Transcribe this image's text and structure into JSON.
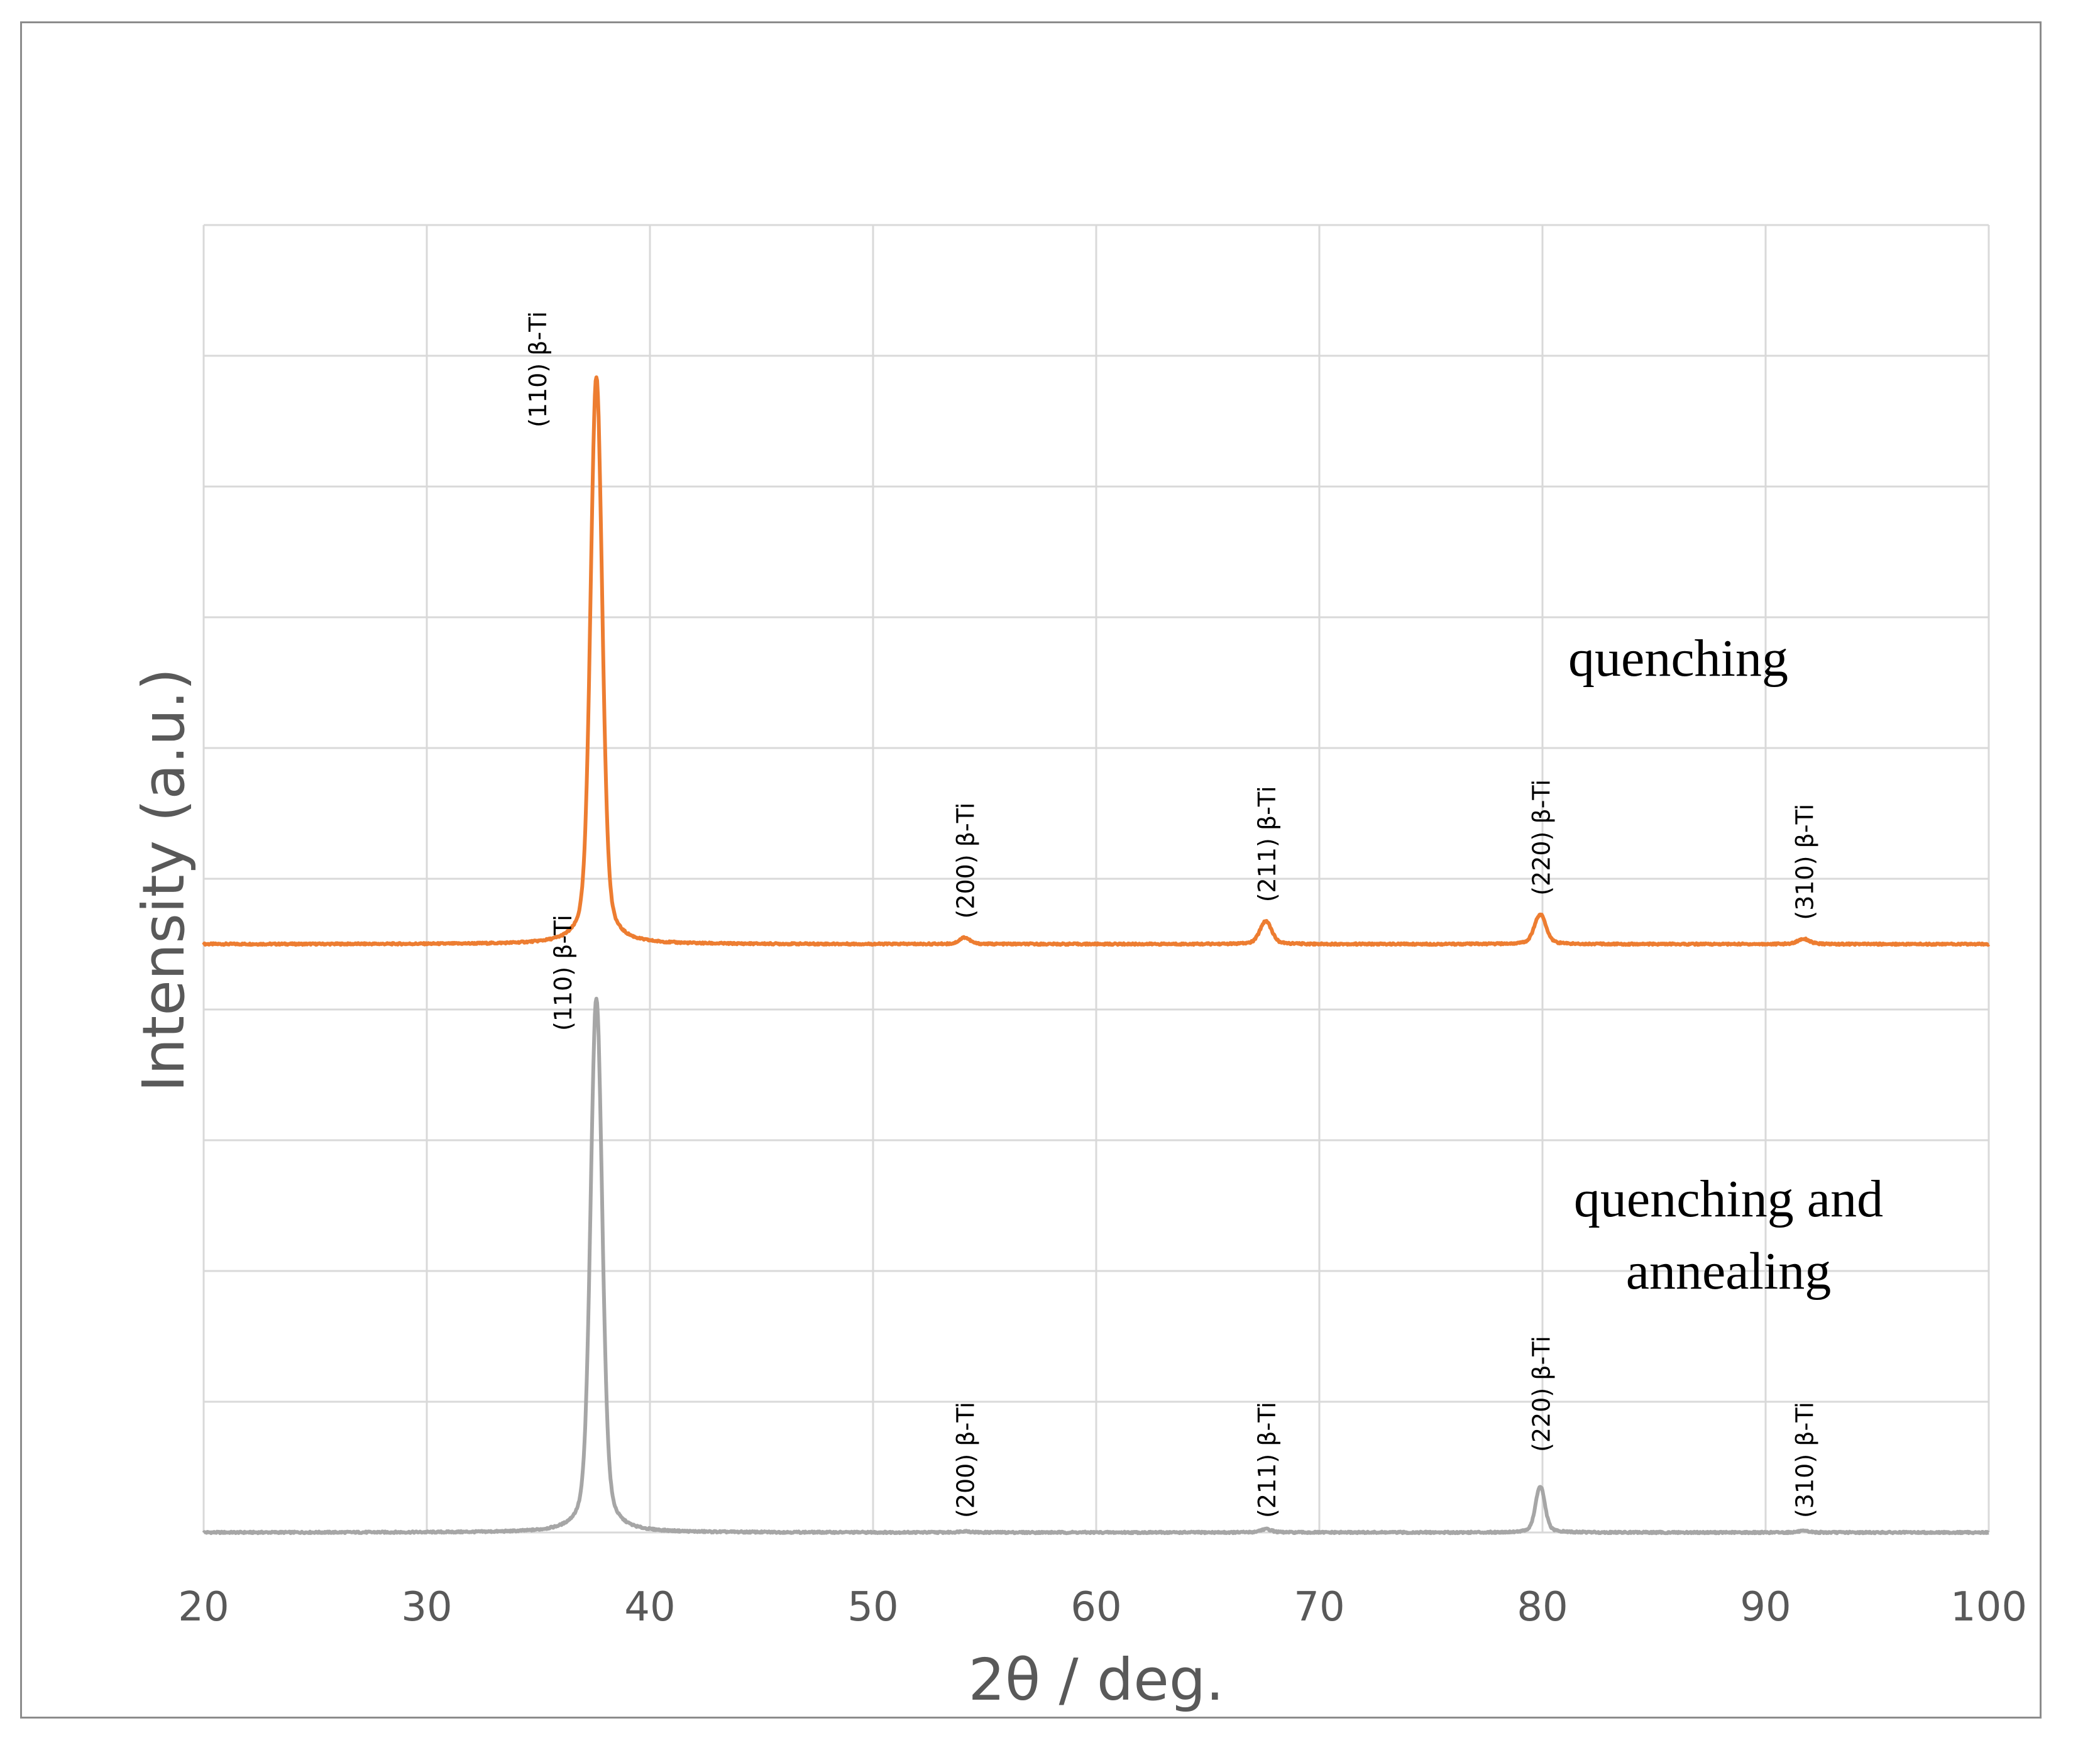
{
  "chart_data": {
    "type": "line",
    "xlabel": "2θ / deg.",
    "ylabel": "Intensity (a.u.)",
    "xlim": [
      20,
      100
    ],
    "x_ticks": [
      "20",
      "30",
      "40",
      "50",
      "60",
      "70",
      "80",
      "90",
      "100"
    ],
    "y_ticks_shown": false,
    "grid": true,
    "colors": {
      "quenching": "#ed7d31",
      "quenching_and_annealing": "#a6a6a6",
      "grid": "#d9d9d9",
      "text": "#595959"
    },
    "series": [
      {
        "name": "quenching",
        "label_lines": [
          "quenching"
        ],
        "peaks": [
          {
            "x": 37.6,
            "height": 8.6,
            "width": 0.25,
            "label": "(110) β-Ti"
          },
          {
            "x": 54.1,
            "height": 0.1,
            "width": 0.22,
            "label": "(200) β-Ti"
          },
          {
            "x": 67.6,
            "height": 0.35,
            "width": 0.25,
            "label": "(211) β-Ti"
          },
          {
            "x": 79.9,
            "height": 0.45,
            "width": 0.25,
            "label": "(220) β-Ti"
          },
          {
            "x": 91.7,
            "height": 0.08,
            "width": 0.25,
            "label": "(310) β-Ti"
          }
        ]
      },
      {
        "name": "quenching and annealing",
        "label_lines": [
          "quenching and",
          "annealing"
        ],
        "peaks": [
          {
            "x": 37.6,
            "height": 8.1,
            "width": 0.25,
            "label": "(110) β-Ti"
          },
          {
            "x": 54.1,
            "height": 0.02,
            "width": 0.22,
            "label": "(200) β-Ti"
          },
          {
            "x": 67.6,
            "height": 0.05,
            "width": 0.25,
            "label": "(211) β-Ti"
          },
          {
            "x": 79.9,
            "height": 0.7,
            "width": 0.2,
            "label": "(220) β-Ti"
          },
          {
            "x": 91.7,
            "height": 0.02,
            "width": 0.25,
            "label": "(310) β-Ti"
          }
        ]
      }
    ]
  }
}
